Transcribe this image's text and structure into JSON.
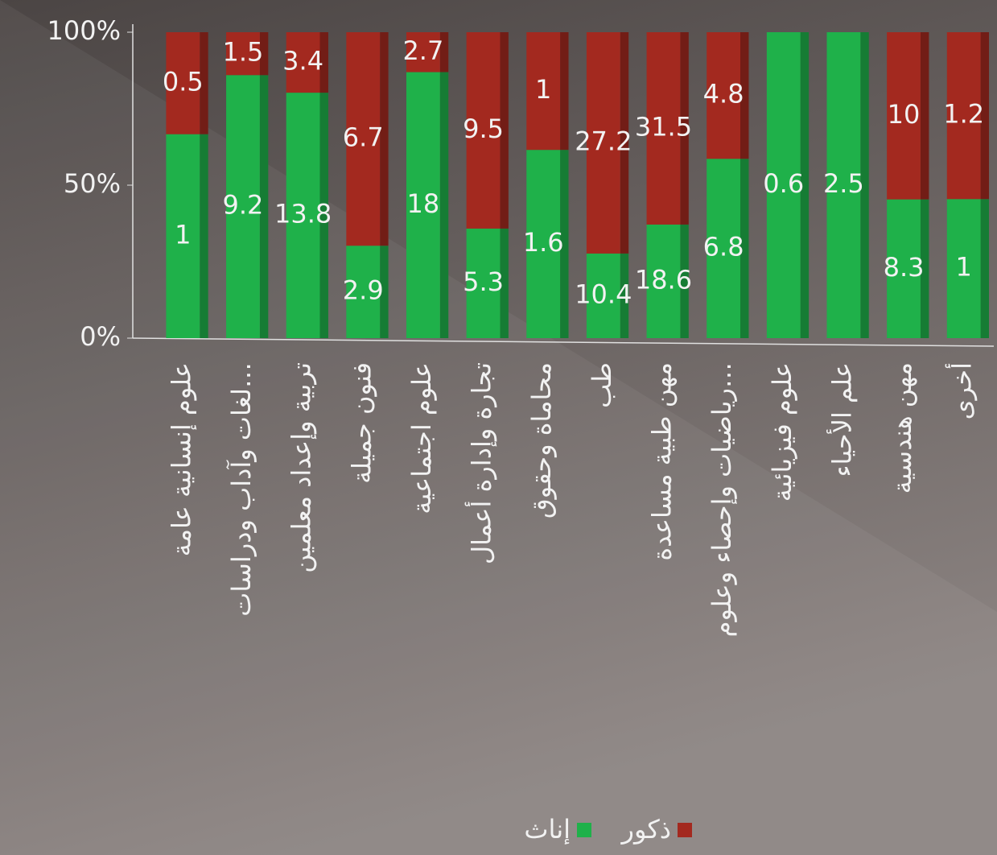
{
  "chart_data": {
    "type": "stacked_bar_percent",
    "categories": [
      "علوم إنسانية عامة",
      "لغات وآداب ودراسات…",
      "تربية وإعداد معلمين",
      "فنون جميلة",
      "علوم اجتماعية",
      "تجارة وإدارة أعمال",
      "محاماة وحقوق",
      "طب",
      "مهن طبية مساعدة",
      "رياضيات وإحصاء وعلوم…",
      "علوم فيزيائية",
      "علم الأحياء",
      "مهن هندسية",
      "أخرى"
    ],
    "series": [
      {
        "name": "إناث",
        "color": "#1fb14a",
        "values": [
          1,
          9.2,
          13.8,
          2.9,
          18,
          5.3,
          1.6,
          10.4,
          18.6,
          6.8,
          0.6,
          2.5,
          8.3,
          1
        ]
      },
      {
        "name": "ذكور",
        "color": "#a3291f",
        "values": [
          0.5,
          1.5,
          3.4,
          6.7,
          2.7,
          9.5,
          1,
          27.2,
          31.5,
          4.8,
          null,
          null,
          10,
          1.2
        ]
      }
    ],
    "ylim": [
      0,
      100
    ],
    "yticks": [
      {
        "value": 0,
        "label": "0%"
      },
      {
        "value": 50,
        "label": "50%"
      },
      {
        "value": 100,
        "label": "100%"
      }
    ],
    "legend": "bottom"
  }
}
